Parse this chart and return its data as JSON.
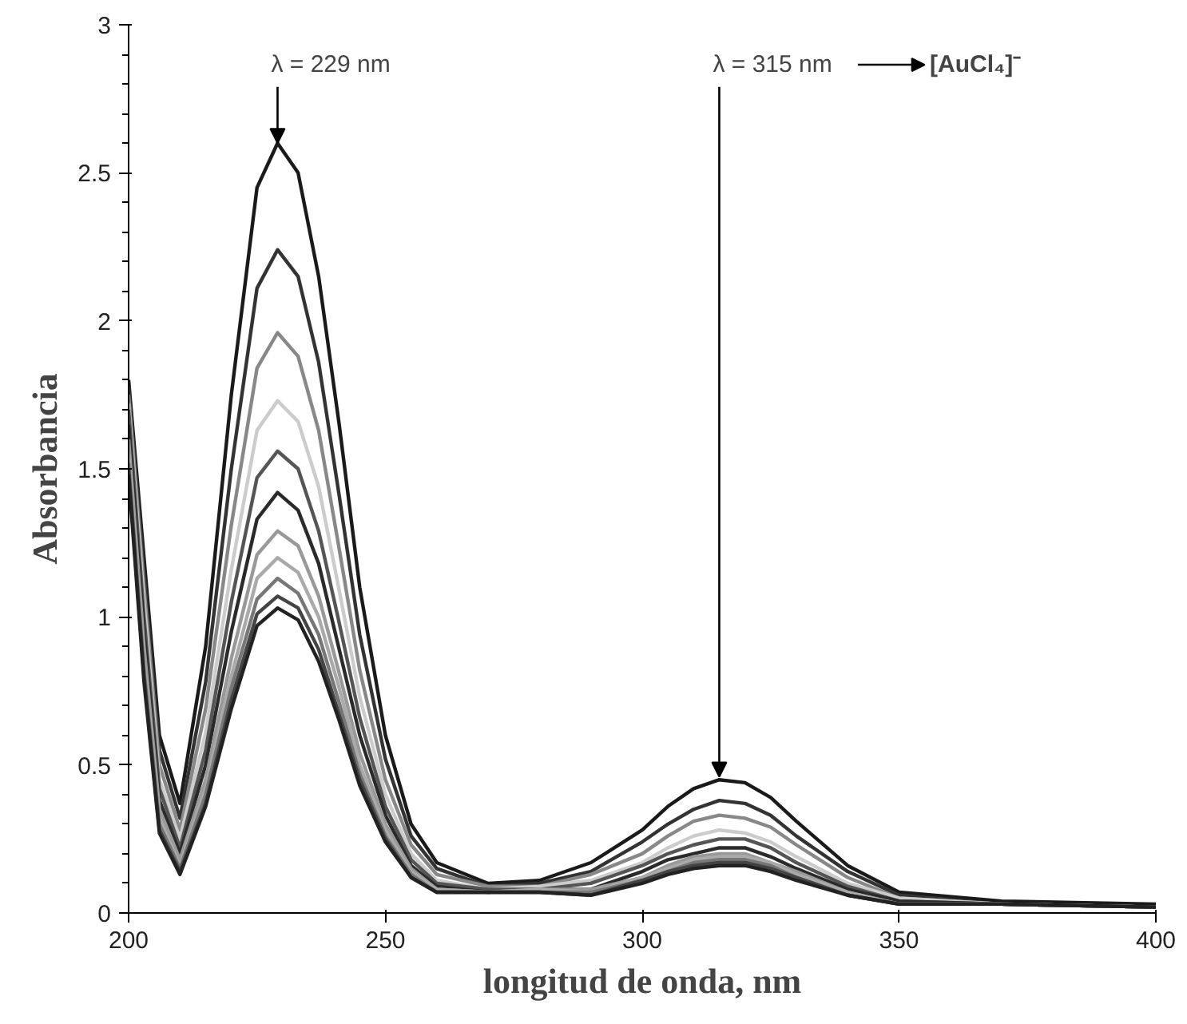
{
  "chart_data": {
    "type": "line",
    "xlabel": "longitud de onda, nm",
    "ylabel": "Absorbancia",
    "x": [
      200,
      203,
      206,
      210,
      215,
      220,
      225,
      229,
      233,
      237,
      241,
      245,
      250,
      255,
      260,
      270,
      280,
      290,
      300,
      305,
      310,
      315,
      320,
      325,
      330,
      340,
      350,
      370,
      400
    ],
    "xlim": [
      200,
      400
    ],
    "xticks": [
      200,
      250,
      300,
      350,
      400
    ],
    "ylim": [
      0,
      3
    ],
    "yticks": [
      0,
      0.5,
      1,
      1.5,
      2,
      2.5,
      3
    ],
    "marker": "none",
    "line_style": "solid",
    "series": [
      {
        "color": "#1a1a1a",
        "values": [
          1.8,
          1.2,
          0.6,
          0.37,
          0.9,
          1.75,
          2.45,
          2.6,
          2.5,
          2.15,
          1.65,
          1.1,
          0.6,
          0.3,
          0.17,
          0.1,
          0.11,
          0.17,
          0.28,
          0.36,
          0.42,
          0.45,
          0.44,
          0.39,
          0.31,
          0.16,
          0.07,
          0.04,
          0.03
        ]
      },
      {
        "color": "#333333",
        "values": [
          1.78,
          1.15,
          0.55,
          0.32,
          0.78,
          1.5,
          2.11,
          2.24,
          2.15,
          1.86,
          1.41,
          0.94,
          0.52,
          0.26,
          0.15,
          0.09,
          0.1,
          0.14,
          0.24,
          0.3,
          0.35,
          0.38,
          0.37,
          0.33,
          0.26,
          0.14,
          0.06,
          0.03,
          0.02
        ]
      },
      {
        "color": "#888888",
        "values": [
          1.75,
          1.1,
          0.5,
          0.28,
          0.69,
          1.31,
          1.84,
          1.96,
          1.88,
          1.63,
          1.23,
          0.82,
          0.45,
          0.23,
          0.13,
          0.09,
          0.09,
          0.13,
          0.2,
          0.26,
          0.31,
          0.33,
          0.32,
          0.29,
          0.23,
          0.12,
          0.05,
          0.03,
          0.02
        ]
      },
      {
        "color": "#cccccc",
        "values": [
          1.72,
          1.05,
          0.45,
          0.25,
          0.61,
          1.16,
          1.63,
          1.73,
          1.66,
          1.44,
          1.09,
          0.73,
          0.4,
          0.2,
          0.11,
          0.08,
          0.09,
          0.11,
          0.17,
          0.22,
          0.26,
          0.28,
          0.27,
          0.24,
          0.19,
          0.1,
          0.05,
          0.03,
          0.02
        ]
      },
      {
        "color": "#555555",
        "values": [
          1.7,
          1.0,
          0.42,
          0.22,
          0.55,
          1.05,
          1.47,
          1.56,
          1.5,
          1.29,
          0.98,
          0.66,
          0.36,
          0.18,
          0.1,
          0.08,
          0.08,
          0.1,
          0.16,
          0.2,
          0.23,
          0.25,
          0.25,
          0.22,
          0.17,
          0.09,
          0.04,
          0.03,
          0.02
        ]
      },
      {
        "color": "#2a2a2a",
        "values": [
          1.65,
          0.95,
          0.38,
          0.2,
          0.5,
          0.95,
          1.33,
          1.42,
          1.36,
          1.18,
          0.89,
          0.6,
          0.33,
          0.16,
          0.09,
          0.07,
          0.08,
          0.08,
          0.14,
          0.18,
          0.2,
          0.22,
          0.22,
          0.19,
          0.15,
          0.08,
          0.04,
          0.03,
          0.02
        ]
      },
      {
        "color": "#999999",
        "values": [
          1.6,
          0.9,
          0.35,
          0.18,
          0.45,
          0.86,
          1.21,
          1.29,
          1.24,
          1.07,
          0.81,
          0.54,
          0.3,
          0.15,
          0.08,
          0.07,
          0.08,
          0.08,
          0.12,
          0.16,
          0.19,
          0.2,
          0.2,
          0.17,
          0.14,
          0.07,
          0.03,
          0.03,
          0.02
        ]
      },
      {
        "color": "#aaaaaa",
        "values": [
          1.55,
          0.85,
          0.32,
          0.16,
          0.42,
          0.8,
          1.13,
          1.2,
          1.15,
          1.0,
          0.76,
          0.5,
          0.28,
          0.14,
          0.08,
          0.07,
          0.08,
          0.07,
          0.12,
          0.15,
          0.18,
          0.19,
          0.19,
          0.17,
          0.13,
          0.07,
          0.03,
          0.03,
          0.02
        ]
      },
      {
        "color": "#777777",
        "values": [
          1.52,
          0.82,
          0.3,
          0.15,
          0.4,
          0.76,
          1.06,
          1.13,
          1.08,
          0.94,
          0.71,
          0.47,
          0.26,
          0.13,
          0.07,
          0.07,
          0.07,
          0.07,
          0.11,
          0.14,
          0.17,
          0.18,
          0.18,
          0.16,
          0.12,
          0.06,
          0.03,
          0.03,
          0.02
        ]
      },
      {
        "color": "#444444",
        "values": [
          1.5,
          0.8,
          0.28,
          0.14,
          0.37,
          0.72,
          1.01,
          1.07,
          1.03,
          0.89,
          0.67,
          0.45,
          0.25,
          0.12,
          0.07,
          0.07,
          0.07,
          0.06,
          0.11,
          0.14,
          0.16,
          0.17,
          0.17,
          0.15,
          0.12,
          0.06,
          0.03,
          0.03,
          0.02
        ]
      },
      {
        "color": "#222222",
        "values": [
          1.48,
          0.78,
          0.27,
          0.13,
          0.36,
          0.69,
          0.97,
          1.03,
          0.99,
          0.85,
          0.65,
          0.43,
          0.24,
          0.12,
          0.07,
          0.07,
          0.07,
          0.06,
          0.1,
          0.13,
          0.15,
          0.16,
          0.16,
          0.14,
          0.11,
          0.06,
          0.03,
          0.03,
          0.02
        ]
      }
    ],
    "annotations": [
      {
        "text": "λ = 229 nm",
        "x": 229,
        "y": 2.6
      },
      {
        "text": "λ = 315 nm",
        "x": 315,
        "y": 0.46
      },
      "[AuCl₄]⁻"
    ]
  }
}
